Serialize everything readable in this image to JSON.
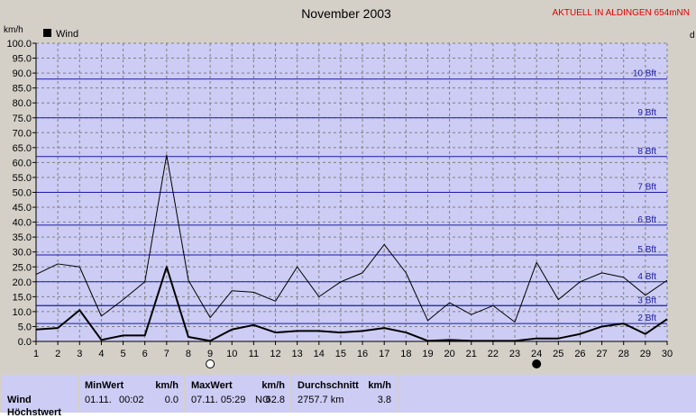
{
  "header": {
    "title": "November 2003",
    "status_link": "AKTUELL IN ALDINGEN 654mNN",
    "y_unit": "km/h",
    "right_unit": "d"
  },
  "legend": {
    "label": "Wind"
  },
  "beaufort": [
    {
      "label": "2 Bft",
      "value": 6
    },
    {
      "label": "",
      "value": 12
    },
    {
      "label": "3 Bft",
      "value": 12
    },
    {
      "label": "4 Bft",
      "value": 20
    },
    {
      "label": "5 Bft",
      "value": 29
    },
    {
      "label": "6 Bft",
      "value": 39
    },
    {
      "label": "7 Bft",
      "value": 50
    },
    {
      "label": "8 Bft",
      "value": 62
    },
    {
      "label": "9 Bft",
      "value": 75
    },
    {
      "label": "10 Bft",
      "value": 88
    }
  ],
  "moon_phases": [
    {
      "day": 9,
      "phase": "full"
    },
    {
      "day": 24,
      "phase": "new"
    }
  ],
  "chart_data": {
    "type": "line",
    "title": "November 2003",
    "ylabel": "km/h",
    "xlabel": "",
    "ylim": [
      0,
      100
    ],
    "xlim": [
      1,
      30
    ],
    "grid": true,
    "legend_position": "top-left",
    "x": [
      1,
      2,
      3,
      4,
      5,
      6,
      7,
      8,
      9,
      10,
      11,
      12,
      13,
      14,
      15,
      16,
      17,
      18,
      19,
      20,
      21,
      22,
      23,
      24,
      25,
      26,
      27,
      28,
      29,
      30
    ],
    "yticks": [
      "0.0",
      "5.0",
      "10.0",
      "15.0",
      "20.0",
      "25.0",
      "30.0",
      "35.0",
      "40.0",
      "45.0",
      "50.0",
      "55.0",
      "60.0",
      "65.0",
      "70.0",
      "75.0",
      "80.0",
      "85.0",
      "90.0",
      "95.0",
      "100.0"
    ],
    "xticks": [
      "1",
      "2",
      "3",
      "4",
      "5",
      "6",
      "7",
      "8",
      "9",
      "10",
      "11",
      "12",
      "13",
      "14",
      "15",
      "16",
      "17",
      "18",
      "19",
      "20",
      "21",
      "22",
      "23",
      "24",
      "25",
      "26",
      "27",
      "28",
      "29",
      "30"
    ],
    "series": [
      {
        "name": "Wind",
        "role": "average",
        "color": "#000000",
        "width": 2,
        "values": [
          4,
          4.5,
          10.5,
          0.5,
          2,
          2,
          25,
          1.5,
          0.2,
          4,
          5.5,
          3,
          3.5,
          3.5,
          3,
          3.5,
          4.5,
          3,
          0.2,
          0.5,
          0.2,
          0.2,
          0.2,
          1,
          1,
          2.5,
          5,
          6,
          2.5,
          7.5
        ]
      },
      {
        "name": "",
        "role": "gust",
        "color": "#000000",
        "width": 1,
        "values": [
          22.5,
          26,
          25,
          8.5,
          14,
          20,
          62.5,
          20.5,
          8,
          17,
          16.5,
          13.5,
          25,
          15,
          20,
          23,
          32.5,
          23,
          7,
          13,
          9,
          12,
          6.5,
          26.5,
          14,
          20,
          23,
          21.5,
          15.5,
          20.5
        ]
      }
    ]
  },
  "summary": {
    "row_label": "Wind",
    "row_label_2": "Höchstwert",
    "min": {
      "header": "MinWert",
      "unit": "km/h",
      "date": "01.11.",
      "time": "00:02",
      "value": "0.0"
    },
    "max": {
      "header": "MaxWert",
      "unit": "km/h",
      "datetime": "07.11.  05:29",
      "dir": "NO",
      "value": "62.8"
    },
    "avg": {
      "header": "Durchschnitt",
      "unit": "km/h",
      "distance": "2757.7 km",
      "value": "3.8"
    }
  },
  "colors": {
    "plot_bg": "#ccccf4",
    "grid": "#808080",
    "bft_line": "#1a1aa8",
    "status": "#e00000",
    "frame_bg": "#d4d0c8"
  }
}
